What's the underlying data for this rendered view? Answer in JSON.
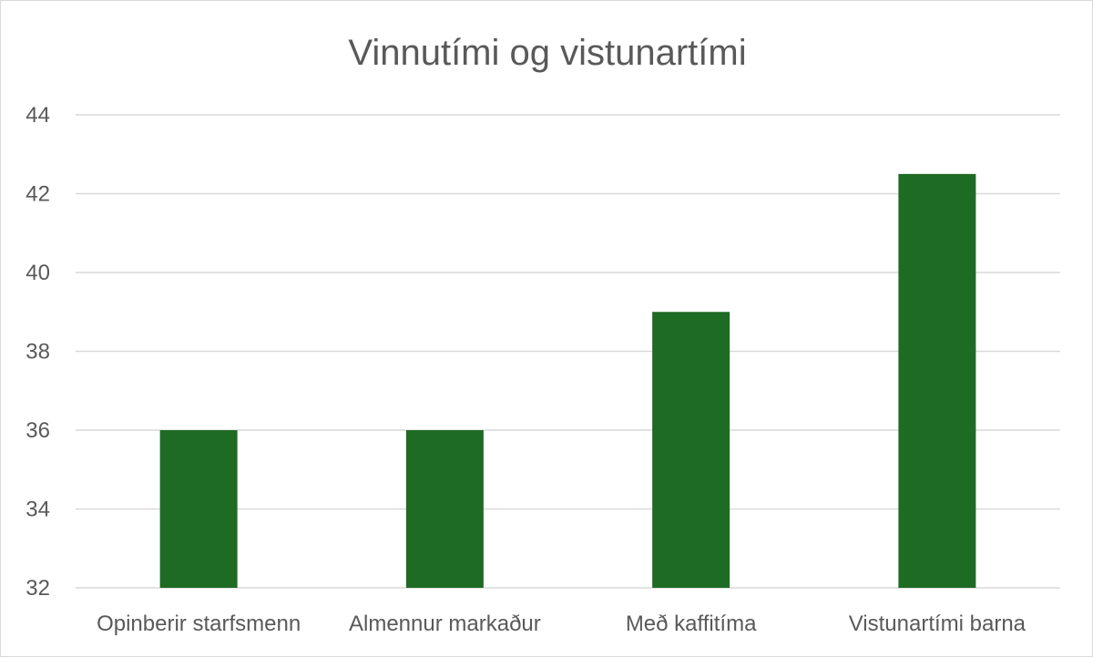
{
  "chart_data": {
    "type": "bar",
    "title": "Vinnutími og vistunartími",
    "xlabel": "",
    "ylabel": "",
    "categories": [
      "Opinberir starfsmenn",
      "Almennur markaður",
      "Með kaffitíma",
      "Vistunartími barna"
    ],
    "values": [
      36,
      36,
      39,
      42.5
    ],
    "ylim": [
      32,
      44
    ],
    "yticks": [
      "32",
      "34",
      "36",
      "38",
      "40",
      "42",
      "44"
    ],
    "grid": true,
    "bar_color": "#1e6b24",
    "grid_color": "#d9d9d9",
    "text_color": "#595959"
  }
}
